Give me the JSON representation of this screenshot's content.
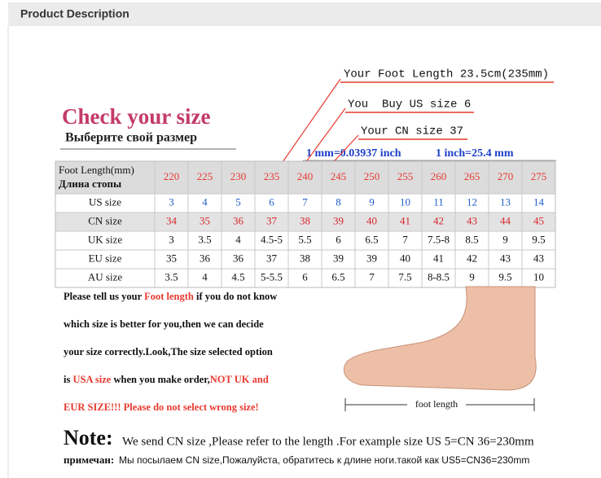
{
  "header": {
    "title": "Product Description"
  },
  "title": "Check your size",
  "subtitle": "Выберите свой размер",
  "annotations": {
    "foot_length": "Your Foot Length 23.5cm(235mm)",
    "us_size": "You  Buy US size 6",
    "cn_size": "Your CN size 37",
    "mm": "1 mm=0.03937 inch",
    "inch": "1 inch=25.4 mm"
  },
  "table": {
    "header": {
      "label": [
        "Foot Length(mm)",
        "Длина стопы"
      ],
      "color": "#e8392f",
      "values": [
        "220",
        "225",
        "230",
        "235",
        "240",
        "245",
        "250",
        "255",
        "260",
        "265",
        "270",
        "275"
      ]
    },
    "rows": [
      {
        "label": "US size",
        "color": "#1f5fc9",
        "shaded": false,
        "values": [
          "3",
          "4",
          "5",
          "6",
          "7",
          "8",
          "9",
          "10",
          "11",
          "12",
          "13",
          "14"
        ]
      },
      {
        "label": "CN size",
        "color": "#d8262c",
        "shaded": true,
        "values": [
          "34",
          "35",
          "36",
          "37",
          "38",
          "39",
          "40",
          "41",
          "42",
          "43",
          "44",
          "45"
        ]
      },
      {
        "label": "UK size",
        "color": "#111111",
        "shaded": false,
        "values": [
          "3",
          "3.5",
          "4",
          "4.5-5",
          "5.5",
          "6",
          "6.5",
          "7",
          "7.5-8",
          "8.5",
          "9",
          "9.5"
        ]
      },
      {
        "label": "EU size",
        "color": "#111111",
        "shaded": false,
        "values": [
          "35",
          "36",
          "36",
          "37",
          "38",
          "39",
          "39",
          "40",
          "41",
          "42",
          "43",
          "43"
        ]
      },
      {
        "label": "AU size",
        "color": "#111111",
        "shaded": false,
        "values": [
          "3.5",
          "4",
          "4.5",
          "5-5.5",
          "6",
          "6.5",
          "7",
          "7.5",
          "8-8.5",
          "9",
          "9.5",
          "10"
        ]
      }
    ]
  },
  "paragraph": {
    "lines": [
      {
        "segments": [
          {
            "text": "Please tell us your "
          },
          {
            "text": "Foot length",
            "color": "#e8392f"
          },
          {
            "text": " if you do not know"
          }
        ]
      },
      {
        "segments": [
          {
            "text": "which size is better for you,then we can decide"
          }
        ]
      },
      {
        "segments": [
          {
            "text": "your size correctly.Look,The size selected option"
          }
        ]
      },
      {
        "segments": [
          {
            "text": "is "
          },
          {
            "text": "USA size",
            "color": "#e8392f"
          },
          {
            "text": " when you make order,"
          },
          {
            "text": "NOT UK and",
            "color": "#e8392f"
          }
        ]
      },
      {
        "segments": [
          {
            "text": "EUR SIZE!!! Please do not select wrong size!",
            "color": "#e8392f"
          }
        ]
      }
    ]
  },
  "foot_label": "foot length",
  "note": {
    "label": "Note:",
    "text": "We send CN size ,Please refer to the length .For example size US 5=CN 36=230mm"
  },
  "note_ru": {
    "label": "примечан:",
    "text": "Мы посылаем CN size,Пожалуйста, обратитесь к длине ноги.такой как US5=CN36=230mm"
  }
}
